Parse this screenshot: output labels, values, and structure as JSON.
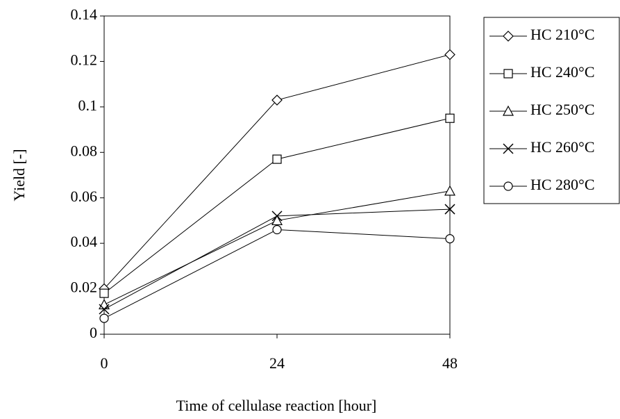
{
  "chart_data": {
    "type": "line",
    "x_label": "Time of cellulase reaction [hour]",
    "y_label": "Yield [-]",
    "x": [
      0,
      24,
      48
    ],
    "xlim": [
      0,
      48
    ],
    "xticks": [
      0,
      24,
      48
    ],
    "ylim": [
      0,
      0.14
    ],
    "yticks": [
      0,
      0.02,
      0.04,
      0.06,
      0.08,
      0.1,
      0.12,
      0.14
    ],
    "legend_position": "right",
    "series": [
      {
        "name": "HC 210°C",
        "color": "#000000",
        "marker": "diamond",
        "values": [
          0.02,
          0.103,
          0.123
        ]
      },
      {
        "name": "HC 240°C",
        "color": "#000000",
        "marker": "square",
        "values": [
          0.018,
          0.077,
          0.095
        ]
      },
      {
        "name": "HC 250°C",
        "color": "#000000",
        "marker": "triangle",
        "values": [
          0.013,
          0.05,
          0.063
        ]
      },
      {
        "name": "HC 260°C",
        "color": "#000000",
        "marker": "x",
        "values": [
          0.011,
          0.052,
          0.055
        ]
      },
      {
        "name": "HC 280°C",
        "color": "#000000",
        "marker": "circle",
        "values": [
          0.007,
          0.046,
          0.042
        ]
      }
    ]
  }
}
